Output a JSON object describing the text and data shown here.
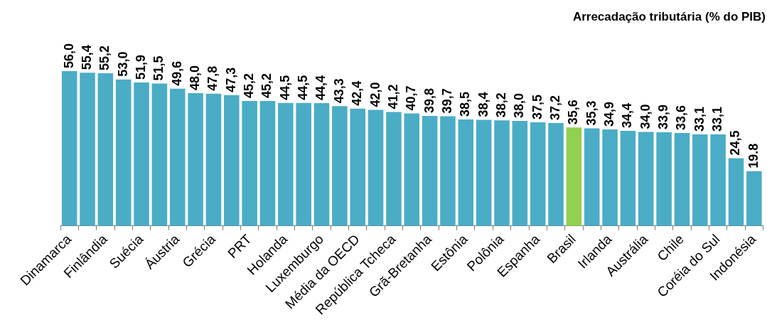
{
  "chart_data": {
    "type": "bar",
    "title": "Arrecadação tributária (% do PIB)",
    "categories": [
      "Dinamarca",
      null,
      "Finlândia",
      null,
      "Suécia",
      null,
      "Áustria",
      null,
      "Grécia",
      null,
      "PRT",
      null,
      "Holanda",
      null,
      "Luxemburgo",
      null,
      "Média da OECD",
      null,
      "República Tcheca",
      null,
      "Grã-Bretanha",
      null,
      "Estônia",
      null,
      "Polônia",
      null,
      "Espanha",
      null,
      "Brasil",
      null,
      "Irlanda",
      null,
      "Austrália",
      null,
      "Chile",
      null,
      "Coréia do Sul",
      null,
      "Indonésia"
    ],
    "values": [
      56.0,
      55.4,
      55.2,
      53.0,
      51.9,
      51.5,
      49.6,
      48.0,
      47.8,
      47.3,
      45.2,
      45.2,
      44.5,
      44.5,
      44.4,
      43.3,
      42.4,
      42.0,
      41.2,
      40.7,
      39.8,
      39.7,
      38.5,
      38.4,
      38.2,
      38.0,
      37.5,
      37.2,
      35.6,
      35.3,
      34.9,
      34.4,
      34.0,
      33.9,
      33.6,
      33.1,
      33.1,
      24.5,
      19.8
    ],
    "value_labels": [
      "56,0",
      "55,4",
      "55,2",
      "53,0",
      "51,9",
      "51,5",
      "49,6",
      "48,0",
      "47,8",
      "47,3",
      "45,2",
      "45,2",
      "44,5",
      "44,5",
      "44,4",
      "43,3",
      "42,4",
      "42,0",
      "41,2",
      "40,7",
      "39,8",
      "39,7",
      "38,5",
      "38,4",
      "38,2",
      "38,0",
      "37,5",
      "37,2",
      "35,6",
      "35,3",
      "34,9",
      "34,4",
      "34,0",
      "33,9",
      "33,6",
      "33,1",
      "33,1",
      "24,5",
      "19.8"
    ],
    "colors": [
      "#4bacc6",
      "#4bacc6",
      "#4bacc6",
      "#4bacc6",
      "#4bacc6",
      "#4bacc6",
      "#4bacc6",
      "#4bacc6",
      "#4bacc6",
      "#4bacc6",
      "#4bacc6",
      "#4bacc6",
      "#4bacc6",
      "#4bacc6",
      "#4bacc6",
      "#4bacc6",
      "#4bacc6",
      "#4bacc6",
      "#4bacc6",
      "#4bacc6",
      "#4bacc6",
      "#4bacc6",
      "#4bacc6",
      "#4bacc6",
      "#4bacc6",
      "#4bacc6",
      "#4bacc6",
      "#4bacc6",
      "#92d050",
      "#4bacc6",
      "#4bacc6",
      "#4bacc6",
      "#4bacc6",
      "#4bacc6",
      "#4bacc6",
      "#4bacc6",
      "#4bacc6",
      "#4bacc6",
      "#4bacc6"
    ],
    "legend": false
  }
}
